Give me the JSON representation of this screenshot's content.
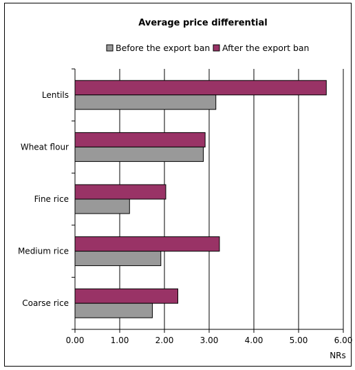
{
  "chart_data": {
    "type": "bar",
    "orientation": "horizontal",
    "title": "Average price differential",
    "xlabel": "NRs",
    "ylabel": "",
    "xlim": [
      0,
      6
    ],
    "x_ticks": [
      "0.00",
      "1.00",
      "2.00",
      "3.00",
      "4.00",
      "5.00",
      "6.00"
    ],
    "grid": "vertical major gridlines",
    "legend_position": "top",
    "categories": [
      "Lentils",
      "Wheat flour",
      "Fine rice",
      "Medium rice",
      "Coarse rice"
    ],
    "series": [
      {
        "name": "Before the export ban",
        "color": "#999999",
        "values": [
          3.15,
          2.87,
          1.22,
          1.92,
          1.73
        ]
      },
      {
        "name": "After the export ban",
        "color": "#993366",
        "values": [
          5.62,
          2.91,
          2.03,
          3.23,
          2.3
        ]
      }
    ]
  }
}
